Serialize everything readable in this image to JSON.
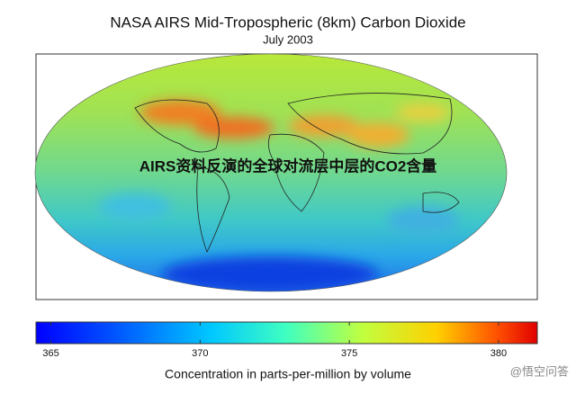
{
  "title": "NASA AIRS Mid-Tropospheric (8km) Carbon Dioxide",
  "subtitle": "July 2003",
  "overlay_text": "AIRS资料反演的全球对流层中层的CO2含量",
  "colorbar": {
    "lim": [
      364.5,
      381.3
    ],
    "ticks": [
      365,
      370,
      375,
      380
    ],
    "label": "Concentration in parts-per-million by volume"
  },
  "watermark": "@悟空问答"
}
